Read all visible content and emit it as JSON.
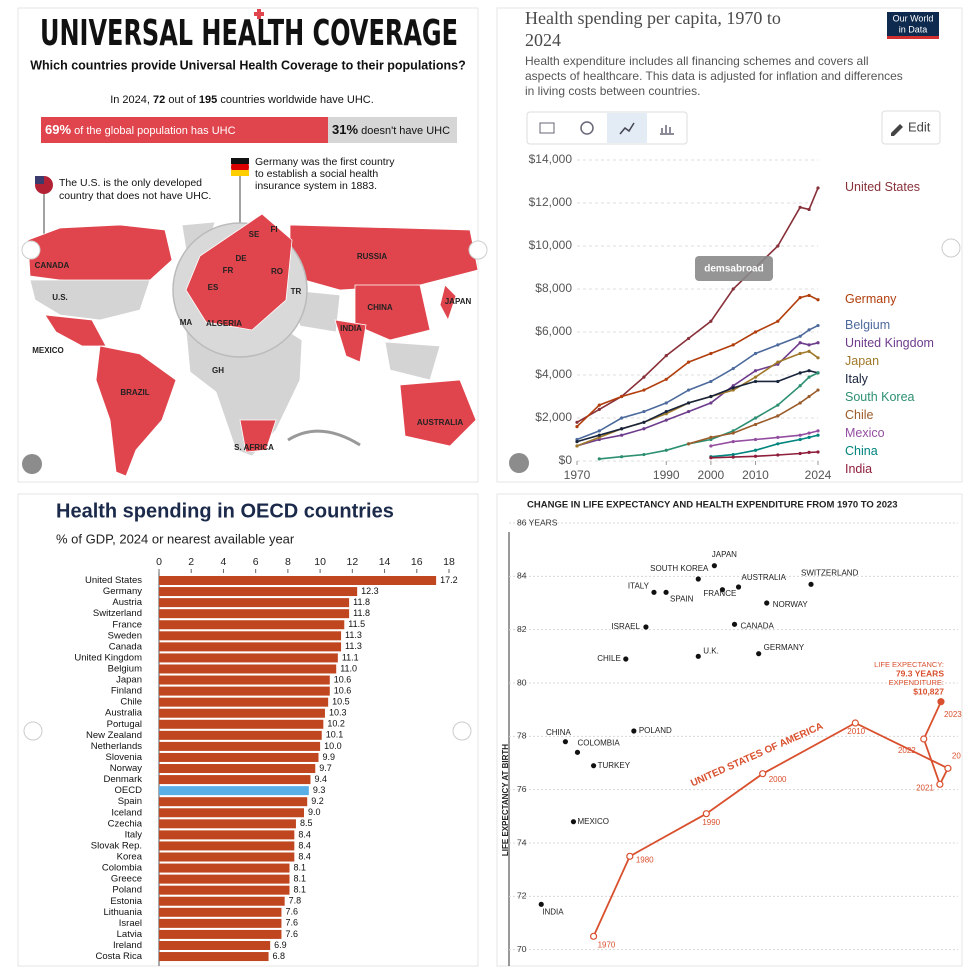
{
  "uhc_infographic": {
    "title": "UNIVERSAL HEALTH COVERAGE",
    "subtitle": "Which countries provide Universal Health Coverage to their populations?",
    "summary": {
      "prefix": "In 2024,",
      "count": 72,
      "mid": "out of",
      "total": 195,
      "suffix": "countries worldwide have UHC."
    },
    "coverage_bar": {
      "values": [
        69,
        31
      ],
      "value_labels": [
        "69%",
        "31%"
      ],
      "labels": [
        "of the global population has UHC",
        "doesn't have UHC"
      ],
      "colors": [
        "#e0454d",
        "#d6d6d6"
      ]
    },
    "us_note": [
      "The U.S. is the only developed",
      "country that does not have UHC."
    ],
    "germany_note": [
      "Germany was the first country",
      "to establish a social health",
      "insurance system in 1883."
    ],
    "map_labels": [
      "CANADA",
      "U.S.",
      "MEXICO",
      "BRAZIL",
      "RUSSIA",
      "CHINA",
      "INDIA",
      "JAPAN",
      "AUSTRALIA",
      "S. AFRICA",
      "ALGERIA",
      "MA",
      "GH",
      "SE",
      "FI",
      "DE",
      "FR",
      "RO",
      "ES",
      "TR"
    ]
  },
  "owid_logo": [
    "Our World",
    "in Data"
  ],
  "edit_button": "Edit",
  "watermark": "demsabroad",
  "chart_data": [
    {
      "type": "line",
      "title_lines": [
        "Health spending per capita, 1970 to",
        "2024"
      ],
      "subtitle_lines": [
        "Health expenditure includes all financing schemes and covers all",
        "aspects of healthcare. This data is adjusted for inflation and differences",
        "in living costs between countries."
      ],
      "x": [
        1970,
        1975,
        1980,
        1985,
        1990,
        1995,
        2000,
        2005,
        2010,
        2015,
        2020,
        2022,
        2024
      ],
      "xlim": [
        1970,
        2024
      ],
      "xticks": [
        1970,
        1990,
        2000,
        2010,
        2024
      ],
      "ylim": [
        0,
        14000
      ],
      "yticks": [
        {
          "value": 0,
          "label": "$0"
        },
        {
          "value": 2000,
          "label": "$2,000"
        },
        {
          "value": 4000,
          "label": "$4,000"
        },
        {
          "value": 6000,
          "label": "$6,000"
        },
        {
          "value": 8000,
          "label": "$8,000"
        },
        {
          "value": 10000,
          "label": "$10,000"
        },
        {
          "value": 12000,
          "label": "$12,000"
        },
        {
          "value": 14000,
          "label": "$14,000"
        }
      ],
      "grid": true,
      "series": [
        {
          "name": "United States",
          "color": "#883039",
          "values": [
            1800,
            2400,
            3000,
            3900,
            4900,
            5700,
            6500,
            8000,
            9000,
            10000,
            11800,
            11700,
            12700
          ]
        },
        {
          "name": "Germany",
          "color": "#b13e0c",
          "values": [
            1600,
            2600,
            3000,
            3300,
            3800,
            4600,
            5000,
            5400,
            6000,
            6500,
            7600,
            7700,
            7500
          ]
        },
        {
          "name": "Belgium",
          "color": "#4c6a9c",
          "values": [
            1000,
            1400,
            2000,
            2300,
            2700,
            3300,
            3700,
            4300,
            5000,
            5400,
            5800,
            6100,
            6300
          ]
        },
        {
          "name": "United Kingdom",
          "color": "#6e3c8c",
          "values": [
            700,
            1000,
            1200,
            1500,
            1900,
            2300,
            2700,
            3500,
            4200,
            4500,
            5500,
            5400,
            5500
          ]
        },
        {
          "name": "Japan",
          "color": "#a0782a",
          "values": [
            700,
            1100,
            1500,
            1800,
            2200,
            2700,
            3000,
            3300,
            3900,
            4600,
            5000,
            5100,
            4800
          ]
        },
        {
          "name": "Italy",
          "color": "#18243c",
          "values": [
            900,
            1200,
            1500,
            1800,
            2300,
            2700,
            3000,
            3400,
            3700,
            3700,
            4100,
            4200,
            4100
          ]
        },
        {
          "name": "South Korea",
          "color": "#2d8f72",
          "values": [
            null,
            100,
            200,
            300,
            500,
            800,
            1000,
            1400,
            2000,
            2600,
            3500,
            3900,
            4100
          ]
        },
        {
          "name": "Chile",
          "color": "#9a5b2a",
          "values": [
            null,
            null,
            null,
            null,
            null,
            800,
            1100,
            1300,
            1700,
            2100,
            2700,
            3000,
            3300
          ]
        },
        {
          "name": "Mexico",
          "color": "#934ea0",
          "values": [
            null,
            null,
            null,
            null,
            null,
            null,
            700,
            900,
            1000,
            1100,
            1200,
            1300,
            1400
          ]
        },
        {
          "name": "China",
          "color": "#00847e",
          "values": [
            null,
            null,
            null,
            null,
            null,
            null,
            200,
            300,
            500,
            800,
            1000,
            1100,
            1200
          ]
        },
        {
          "name": "India",
          "color": "#8f1e3b",
          "values": [
            null,
            null,
            null,
            null,
            null,
            null,
            150,
            180,
            220,
            280,
            350,
            400,
            420
          ]
        }
      ]
    },
    {
      "type": "hbar",
      "title": "Health spending in OECD countries",
      "subtitle": "% of GDP, 2024 or nearest available year",
      "xlim": [
        0,
        18
      ],
      "xticks": [
        0,
        2,
        4,
        6,
        8,
        10,
        12,
        14,
        16,
        18
      ],
      "color": "#c0461f",
      "highlight": [
        "OECD"
      ],
      "highlight_color": "#5aaee6",
      "categories": [
        "United States",
        "Germany",
        "Austria",
        "Switzerland",
        "France",
        "Sweden",
        "Canada",
        "United Kingdom",
        "Belgium",
        "Japan",
        "Finland",
        "Chile",
        "Australia",
        "Portugal",
        "New Zealand",
        "Netherlands",
        "Slovenia",
        "Norway",
        "Denmark",
        "OECD",
        "Spain",
        "Iceland",
        "Czechia",
        "Italy",
        "Slovak Rep.",
        "Korea",
        "Colombia",
        "Greece",
        "Poland",
        "Estonia",
        "Lithuania",
        "Israel",
        "Latvia",
        "Ireland",
        "Costa Rica"
      ],
      "values": [
        17.2,
        12.3,
        11.8,
        11.8,
        11.5,
        11.3,
        11.3,
        11.1,
        11.0,
        10.6,
        10.6,
        10.5,
        10.3,
        10.2,
        10.1,
        10.0,
        9.9,
        9.7,
        9.4,
        9.3,
        9.2,
        9.0,
        8.5,
        8.4,
        8.4,
        8.4,
        8.1,
        8.1,
        8.1,
        7.8,
        7.6,
        7.6,
        7.6,
        6.9,
        6.8
      ],
      "value_labels": [
        "17.2",
        "12.3",
        "11.8",
        "11.8",
        "11.5",
        "11.3",
        "11.3",
        "11.1",
        "11.0",
        "10.6",
        "10.6",
        "10.5",
        "10.3",
        "10.2",
        "10.1",
        "10.0",
        "9.9",
        "9.7",
        "9.4",
        "9.3",
        "9.2",
        "9.0",
        "8.5",
        "8.4",
        "8.4",
        "8.4",
        "8.1",
        "8.1",
        "8.1",
        "7.8",
        "7.6",
        "7.6",
        "7.6",
        "6.9",
        "6.8"
      ]
    },
    {
      "type": "scatter",
      "title": "CHANGE IN LIFE EXPECTANCY AND HEALTH EXPENDITURE FROM 1970 TO 2023",
      "ylabel": "LIFE EXPECTANCY AT BIRTH",
      "xlim": [
        0,
        11300
      ],
      "ylim": [
        69.5,
        86
      ],
      "yticks": [
        70,
        72,
        74,
        76,
        78,
        80,
        82,
        84,
        {
          "value": 86,
          "label": "86 YEARS"
        }
      ],
      "grid": true,
      "points": {
        "color": "#111111",
        "labels": [
          "JAPAN",
          "SOUTH KOREA",
          "AUSTRALIA",
          "SWITZERLAND",
          "ITALY",
          "SPAIN",
          "FRANCE",
          "NORWAY",
          "ISRAEL",
          "CANADA",
          "GERMANY",
          "U.K.",
          "CHILE",
          "POLAND",
          "CHINA",
          "COLOMBIA",
          "TURKEY",
          "MEXICO",
          "INDIA"
        ],
        "x": [
          5200,
          4800,
          5800,
          7600,
          3700,
          4000,
          5400,
          6500,
          3500,
          5700,
          6300,
          4800,
          3000,
          3200,
          1500,
          1800,
          2200,
          1700,
          900
        ],
        "y": [
          84.4,
          83.9,
          83.6,
          83.7,
          83.4,
          83.4,
          83.5,
          83.0,
          82.1,
          82.2,
          81.1,
          81.0,
          80.9,
          78.2,
          77.8,
          77.4,
          76.9,
          74.8,
          71.7
        ]
      },
      "us_path": {
        "name": "UNITED STATES OF AMERICA",
        "color": "#d9502e",
        "labels": [
          "1970",
          "1980",
          "1990",
          "2000",
          "2010",
          "20",
          "2021",
          "2022",
          "2023"
        ],
        "x": [
          2200,
          3100,
          5000,
          6400,
          8700,
          11000,
          10800,
          10400,
          10827
        ],
        "y": [
          70.5,
          73.5,
          75.1,
          76.6,
          78.5,
          76.8,
          76.2,
          77.9,
          79.3
        ]
      },
      "annotation": [
        "LIFE EXPECTANCY:",
        "79.3 YEARS",
        "EXPENDITURE:",
        "$10,827"
      ]
    }
  ]
}
